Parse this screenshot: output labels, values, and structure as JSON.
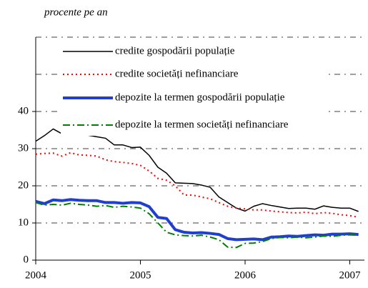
{
  "chart_data": {
    "type": "line",
    "subtitle": "procente pe an",
    "x": [
      2004,
      2004.083,
      2004.167,
      2004.25,
      2004.333,
      2004.417,
      2004.5,
      2004.583,
      2004.667,
      2004.75,
      2004.833,
      2004.917,
      2005,
      2005.083,
      2005.167,
      2005.25,
      2005.333,
      2005.417,
      2005.5,
      2005.583,
      2005.667,
      2005.75,
      2005.833,
      2005.917,
      2006,
      2006.083,
      2006.167,
      2006.25,
      2006.333,
      2006.417,
      2006.5,
      2006.583,
      2006.667,
      2006.75,
      2006.833,
      2006.917,
      2007,
      2007.083
    ],
    "series": [
      {
        "name": "credite gospodării populație",
        "color": "#000000",
        "width": 1.5,
        "dash": "none",
        "values": [
          32,
          33.5,
          35.3,
          34,
          34.8,
          34.2,
          33.6,
          33.2,
          32.8,
          31,
          31,
          30.3,
          30.4,
          28.2,
          25,
          23.4,
          20.8,
          20.7,
          20.6,
          20.2,
          19.6,
          17,
          15.5,
          14,
          13.2,
          14.5,
          15.2,
          14.7,
          14.3,
          13.9,
          14,
          14,
          13.7,
          14.6,
          14.2,
          14,
          14,
          13.1
        ]
      },
      {
        "name": "credite societăți nefinanciare",
        "color": "#ff0000",
        "width": 2,
        "dash": "2,4",
        "values": [
          28.5,
          28.7,
          28.8,
          28,
          28.9,
          28.3,
          28.2,
          28,
          27,
          26.5,
          26.3,
          26,
          25.5,
          24,
          22,
          21.5,
          20,
          17.5,
          17.5,
          17,
          16.5,
          15.5,
          14.5,
          14,
          13.8,
          13.5,
          13.5,
          13.2,
          13,
          12.8,
          12.7,
          12.9,
          12.5,
          12.8,
          12.6,
          12.2,
          12,
          11.5
        ]
      },
      {
        "name": "depozite la termen gospodării populație",
        "color": "#1f3fcf",
        "width": 4,
        "dash": "none",
        "values": [
          15.8,
          15.2,
          16.2,
          16,
          16.3,
          16.1,
          16,
          16,
          15.5,
          15.5,
          15.3,
          15.5,
          15.4,
          14.4,
          11.5,
          11.2,
          8.2,
          7.5,
          7.3,
          7.4,
          7.2,
          6.9,
          5.8,
          5.5,
          5.6,
          5.7,
          5.5,
          6.2,
          6.3,
          6.5,
          6.4,
          6.6,
          6.8,
          6.7,
          7,
          7,
          7.1,
          6.9
        ]
      },
      {
        "name": "depozite la termen societăți nefinanciare",
        "color": "#008000",
        "width": 2,
        "dash": "10,4,2,4",
        "values": [
          15.5,
          14.8,
          15,
          14.8,
          15.3,
          15,
          14.8,
          14.5,
          14.7,
          14.2,
          14.5,
          14.3,
          14,
          12.5,
          10,
          7.5,
          6.8,
          6.6,
          6.5,
          6.7,
          6.2,
          5.5,
          3.5,
          3.4,
          4.5,
          4.6,
          5,
          5.8,
          6.1,
          6,
          6.2,
          6,
          6.2,
          6.5,
          6.4,
          6.7,
          6.8,
          6.7
        ]
      }
    ],
    "xlim": [
      2004,
      2007.14
    ],
    "xticks": [
      2004,
      2005,
      2006,
      2007
    ],
    "ylim": [
      0,
      40
    ],
    "yticks": [
      0,
      10,
      20,
      30,
      40
    ],
    "gridlines": [
      10,
      20,
      30,
      40,
      50,
      60
    ]
  }
}
